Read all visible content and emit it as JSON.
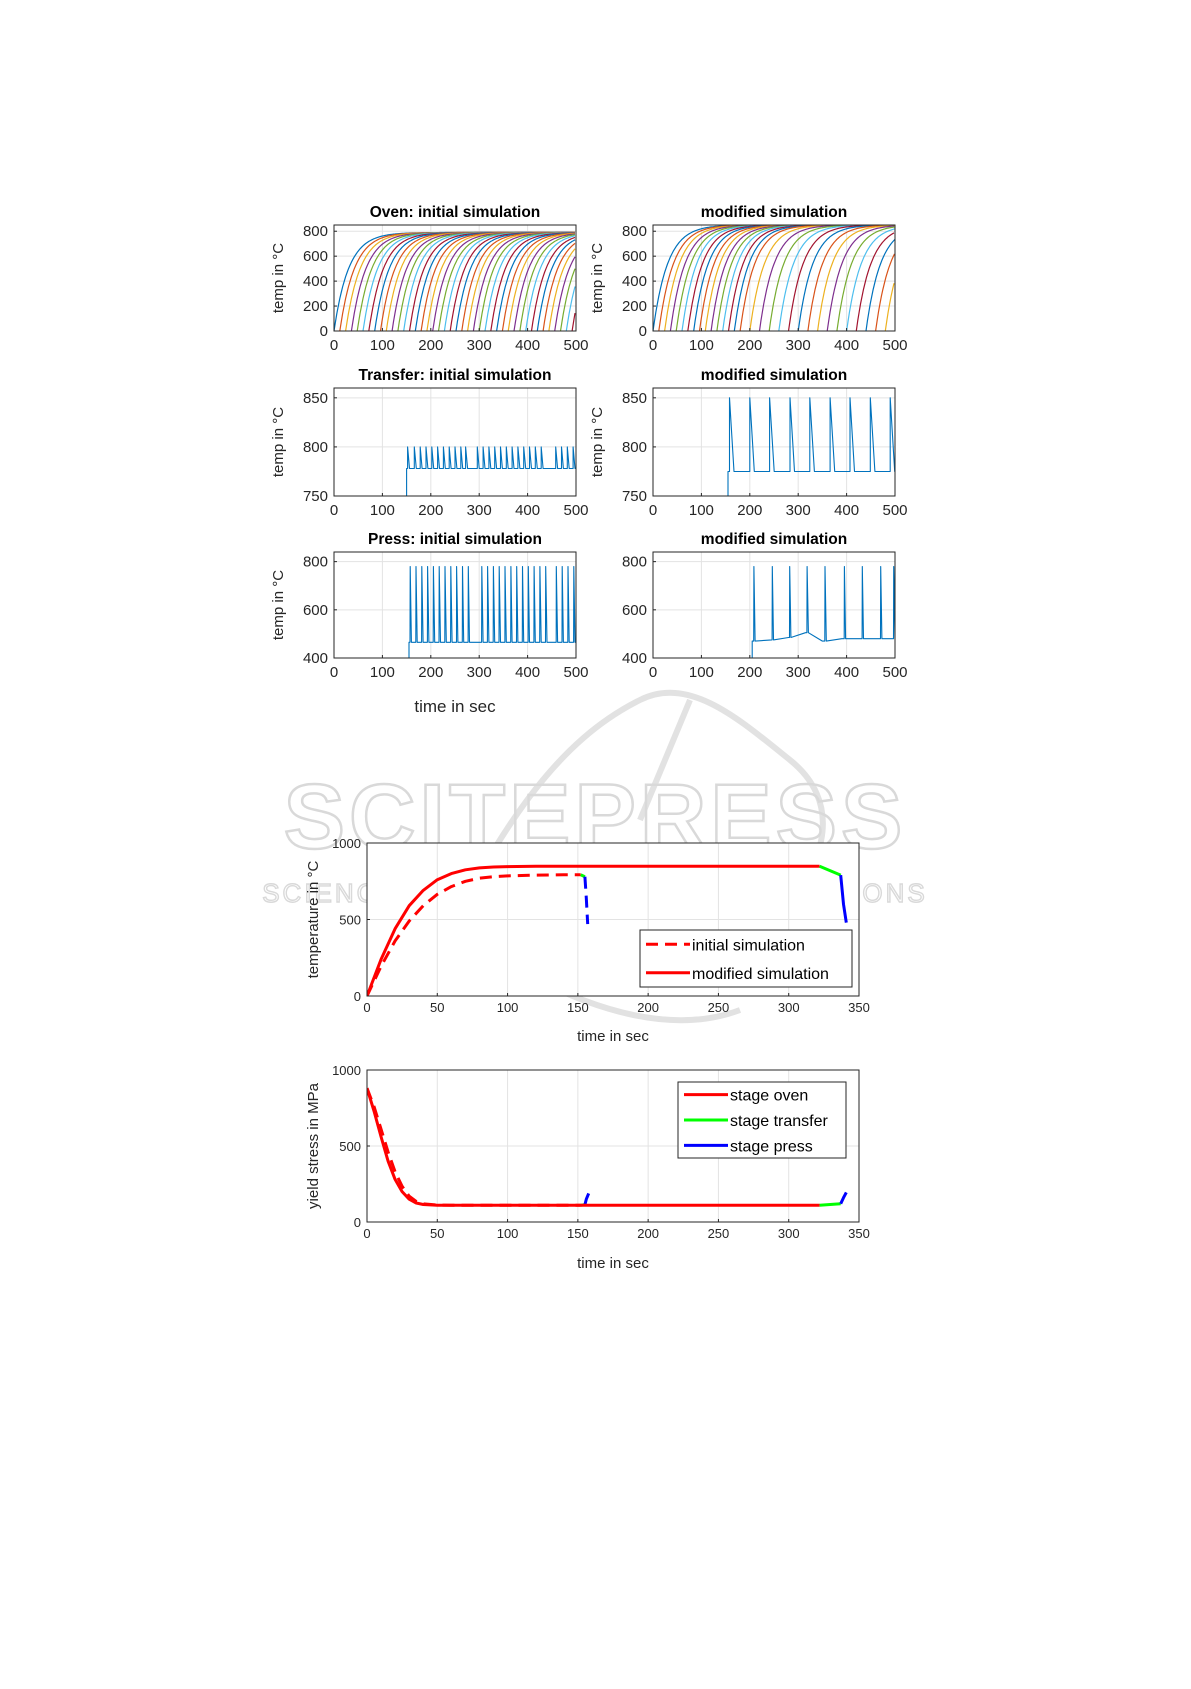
{
  "watermark": {
    "title": "SCITEPRESS",
    "subtitle": "SCIENCE AND TECHNOLOGY PUBLICATIONS"
  },
  "colors": {
    "matlab_order": [
      "#0072BD",
      "#D95319",
      "#EDB120",
      "#7E2F8E",
      "#77AC30",
      "#4DBEEE",
      "#A2142F"
    ],
    "stage_oven": "#FF0000",
    "stage_transfer": "#00FF00",
    "stage_press": "#0000FF",
    "single_trace": "#0072BD"
  },
  "grid": {
    "common_xlabel": "time in sec"
  },
  "chart_data": [
    {
      "id": "oven-initial",
      "type": "line",
      "title": "Oven: initial simulation",
      "ylabel": "temp in °C",
      "xlim": [
        0,
        500
      ],
      "ylim": [
        0,
        850
      ],
      "xticks": [
        0,
        100,
        200,
        300,
        400,
        500
      ],
      "yticks": [
        0,
        200,
        400,
        600,
        800
      ],
      "grid": true,
      "model": "exponential heating curves, one per part",
      "curve_start_times": [
        0,
        12,
        24,
        36,
        48,
        60,
        72,
        84,
        96,
        108,
        120,
        132,
        144,
        156,
        168,
        180,
        192,
        204,
        216,
        228,
        240,
        252,
        264,
        276,
        288,
        300,
        312,
        324,
        336,
        348,
        360,
        372,
        384,
        396,
        408,
        420,
        432,
        444,
        456,
        468,
        480,
        492
      ],
      "plateau_temp": 790,
      "time_constant": 30
    },
    {
      "id": "oven-modified",
      "type": "line",
      "title": "modified simulation",
      "ylabel": "temp in °C",
      "xlim": [
        0,
        500
      ],
      "ylim": [
        0,
        850
      ],
      "xticks": [
        0,
        100,
        200,
        300,
        400,
        500
      ],
      "yticks": [
        0,
        200,
        400,
        600,
        800
      ],
      "grid": true,
      "model": "exponential heating curves, one per part",
      "curve_start_times": [
        0,
        12,
        24,
        36,
        48,
        60,
        72,
        84,
        96,
        108,
        120,
        132,
        144,
        156,
        168,
        180,
        200,
        220,
        240,
        260,
        280,
        300,
        320,
        340,
        360,
        380,
        400,
        420,
        440,
        460,
        480
      ],
      "plateau_temp": 850,
      "time_constant": 30
    },
    {
      "id": "transfer-initial",
      "type": "line",
      "title": "Transfer: initial simulation",
      "ylabel": "temp in °C",
      "xlim": [
        0,
        500
      ],
      "ylim": [
        750,
        860
      ],
      "xticks": [
        0,
        100,
        200,
        300,
        400,
        500
      ],
      "yticks": [
        750,
        800,
        850
      ],
      "grid": true,
      "model": "sawtooth pulses from baseline",
      "start": 150,
      "baseline": 778,
      "peak": 800,
      "pulse_times": [
        152,
        166,
        178,
        190,
        202,
        214,
        226,
        238,
        250,
        262,
        272,
        296,
        308,
        320,
        332,
        344,
        356,
        368,
        380,
        392,
        404,
        416,
        428,
        458,
        470,
        482,
        494
      ]
    },
    {
      "id": "transfer-modified",
      "type": "line",
      "title": "modified simulation",
      "ylabel": "temp in °C",
      "xlim": [
        0,
        500
      ],
      "ylim": [
        750,
        860
      ],
      "xticks": [
        0,
        100,
        200,
        300,
        400,
        500
      ],
      "yticks": [
        750,
        800,
        850
      ],
      "grid": true,
      "model": "sawtooth pulses from baseline",
      "start": 155,
      "baseline": 775,
      "peak": 850,
      "pulse_times": [
        158,
        200,
        241,
        283,
        324,
        366,
        407,
        449,
        490
      ]
    },
    {
      "id": "press-initial",
      "type": "line",
      "title": "Press: initial simulation",
      "ylabel": "temp in °C",
      "xlabel": "time in sec",
      "xlim": [
        0,
        500
      ],
      "ylim": [
        400,
        840
      ],
      "xticks": [
        0,
        100,
        200,
        300,
        400,
        500
      ],
      "yticks": [
        400,
        600,
        800
      ],
      "grid": true,
      "model": "spikes from baseline",
      "start": 155,
      "baseline": 465,
      "peak": 780,
      "spike_times": [
        157,
        169,
        181,
        193,
        205,
        217,
        229,
        241,
        253,
        265,
        277,
        305,
        317,
        329,
        341,
        353,
        365,
        377,
        389,
        401,
        413,
        425,
        437,
        459,
        471,
        483,
        495
      ]
    },
    {
      "id": "press-modified",
      "type": "line",
      "title": "modified simulation",
      "ylabel": "",
      "xlabel": "",
      "xlim": [
        0,
        500
      ],
      "ylim": [
        400,
        840
      ],
      "xticks": [
        0,
        100,
        200,
        300,
        400,
        500
      ],
      "yticks": [
        400,
        600,
        800
      ],
      "grid": true,
      "model": "spikes from stepwise baseline",
      "start": 205,
      "baseline_steps": [
        [
          205,
          470
        ],
        [
          245,
          475
        ],
        [
          280,
          485
        ],
        [
          315,
          505
        ],
        [
          350,
          470
        ],
        [
          390,
          480
        ],
        [
          500,
          480
        ]
      ],
      "peak": 780,
      "spike_times": [
        208,
        246,
        282,
        318,
        355,
        395,
        432,
        470,
        497
      ]
    },
    {
      "id": "temperature",
      "type": "line",
      "title": "",
      "ylabel": "temperature in °C",
      "xlabel": "time in sec",
      "xlim": [
        0,
        350
      ],
      "ylim": [
        0,
        1000
      ],
      "xticks": [
        0,
        50,
        100,
        150,
        200,
        250,
        300,
        350
      ],
      "yticks": [
        0,
        500,
        1000
      ],
      "grid": true,
      "legend": {
        "placement": "lower-right",
        "entries": [
          "initial simulation",
          "modified simulation"
        ]
      },
      "series": [
        {
          "name": "initial simulation",
          "style": "dashed",
          "segments": [
            {
              "stage": "oven",
              "x": [
                0,
                10,
                20,
                30,
                40,
                50,
                60,
                70,
                80,
                90,
                100,
                120,
                140,
                152
              ],
              "y": [
                0,
                195,
                360,
                490,
                590,
                665,
                715,
                750,
                770,
                780,
                785,
                790,
                792,
                792
              ]
            },
            {
              "stage": "transfer",
              "x": [
                152,
                155
              ],
              "y": [
                792,
                780
              ]
            },
            {
              "stage": "press",
              "x": [
                155,
                156,
                157
              ],
              "y": [
                780,
                640,
                470
              ]
            }
          ]
        },
        {
          "name": "modified simulation",
          "style": "solid",
          "segments": [
            {
              "stage": "oven",
              "x": [
                0,
                10,
                20,
                30,
                40,
                50,
                60,
                70,
                80,
                90,
                100,
                120,
                150,
                200,
                250,
                300,
                322
              ],
              "y": [
                0,
                240,
                440,
                590,
                690,
                760,
                800,
                825,
                837,
                843,
                846,
                848,
                848,
                848,
                848,
                848,
                848
              ]
            },
            {
              "stage": "transfer",
              "x": [
                322,
                337
              ],
              "y": [
                848,
                790
              ]
            },
            {
              "stage": "press",
              "x": [
                337,
                339,
                341
              ],
              "y": [
                790,
                600,
                480
              ]
            }
          ]
        }
      ]
    },
    {
      "id": "yield-stress",
      "type": "line",
      "title": "",
      "ylabel": "yield stress in MPa",
      "xlabel": "time in sec",
      "xlim": [
        0,
        350
      ],
      "ylim": [
        0,
        1000
      ],
      "xticks": [
        0,
        50,
        100,
        150,
        200,
        250,
        300,
        350
      ],
      "yticks": [
        0,
        500,
        1000
      ],
      "grid": true,
      "legend": {
        "placement": "top-right",
        "entries": [
          "stage oven",
          "stage transfer",
          "stage press"
        ]
      },
      "series": [
        {
          "name": "initial simulation",
          "style": "dashed",
          "segments": [
            {
              "stage": "oven",
              "x": [
                0,
                5,
                10,
                15,
                20,
                25,
                30,
                35,
                40,
                50,
                60,
                80,
                100,
                120,
                152
              ],
              "y": [
                880,
                760,
                610,
                460,
                330,
                235,
                170,
                135,
                120,
                112,
                110,
                110,
                110,
                110,
                110
              ]
            },
            {
              "stage": "transfer",
              "x": [
                152,
                155
              ],
              "y": [
                110,
                113
              ]
            },
            {
              "stage": "press",
              "x": [
                155,
                156,
                158
              ],
              "y": [
                113,
                150,
                195
              ]
            }
          ]
        },
        {
          "name": "modified simulation",
          "style": "solid",
          "segments": [
            {
              "stage": "oven",
              "x": [
                0,
                5,
                10,
                15,
                20,
                25,
                30,
                35,
                40,
                50,
                60,
                80,
                100,
                150,
                200,
                250,
                300,
                322
              ],
              "y": [
                880,
                730,
                560,
                400,
                280,
                200,
                150,
                125,
                115,
                110,
                110,
                110,
                110,
                110,
                110,
                110,
                110,
                110
              ]
            },
            {
              "stage": "transfer",
              "x": [
                322,
                337
              ],
              "y": [
                110,
                120
              ]
            },
            {
              "stage": "press",
              "x": [
                337,
                339,
                341
              ],
              "y": [
                120,
                160,
                195
              ]
            }
          ]
        }
      ]
    }
  ]
}
